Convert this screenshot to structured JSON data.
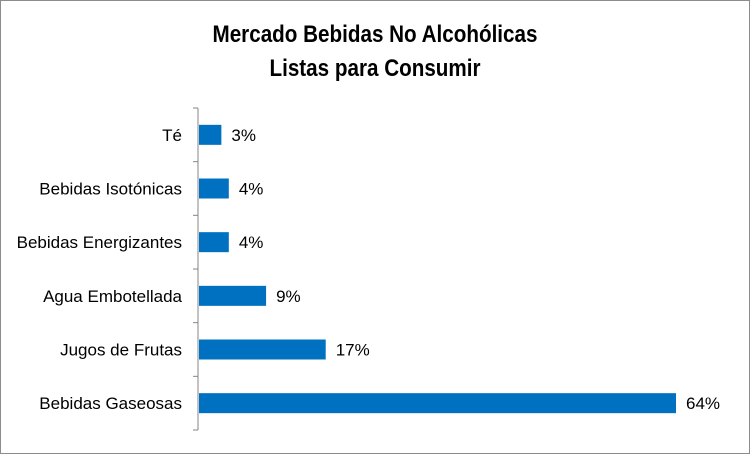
{
  "chart_data": {
    "type": "bar",
    "orientation": "horizontal",
    "title": [
      "Mercado Bebidas No Alcohólicas",
      "Listas para Consumir"
    ],
    "categories": [
      "Té",
      "Bebidas Isotónicas",
      "Bebidas Energizantes",
      "Agua Embotellada",
      "Jugos de Frutas",
      "Bebidas Gaseosas"
    ],
    "values": [
      3,
      4,
      4,
      9,
      17,
      64
    ],
    "value_labels": [
      "3%",
      "4%",
      "4%",
      "9%",
      "17%",
      "64%"
    ],
    "xlim": [
      0,
      64
    ],
    "bar_color": "#0070c0",
    "legend": "none",
    "grid": false
  }
}
